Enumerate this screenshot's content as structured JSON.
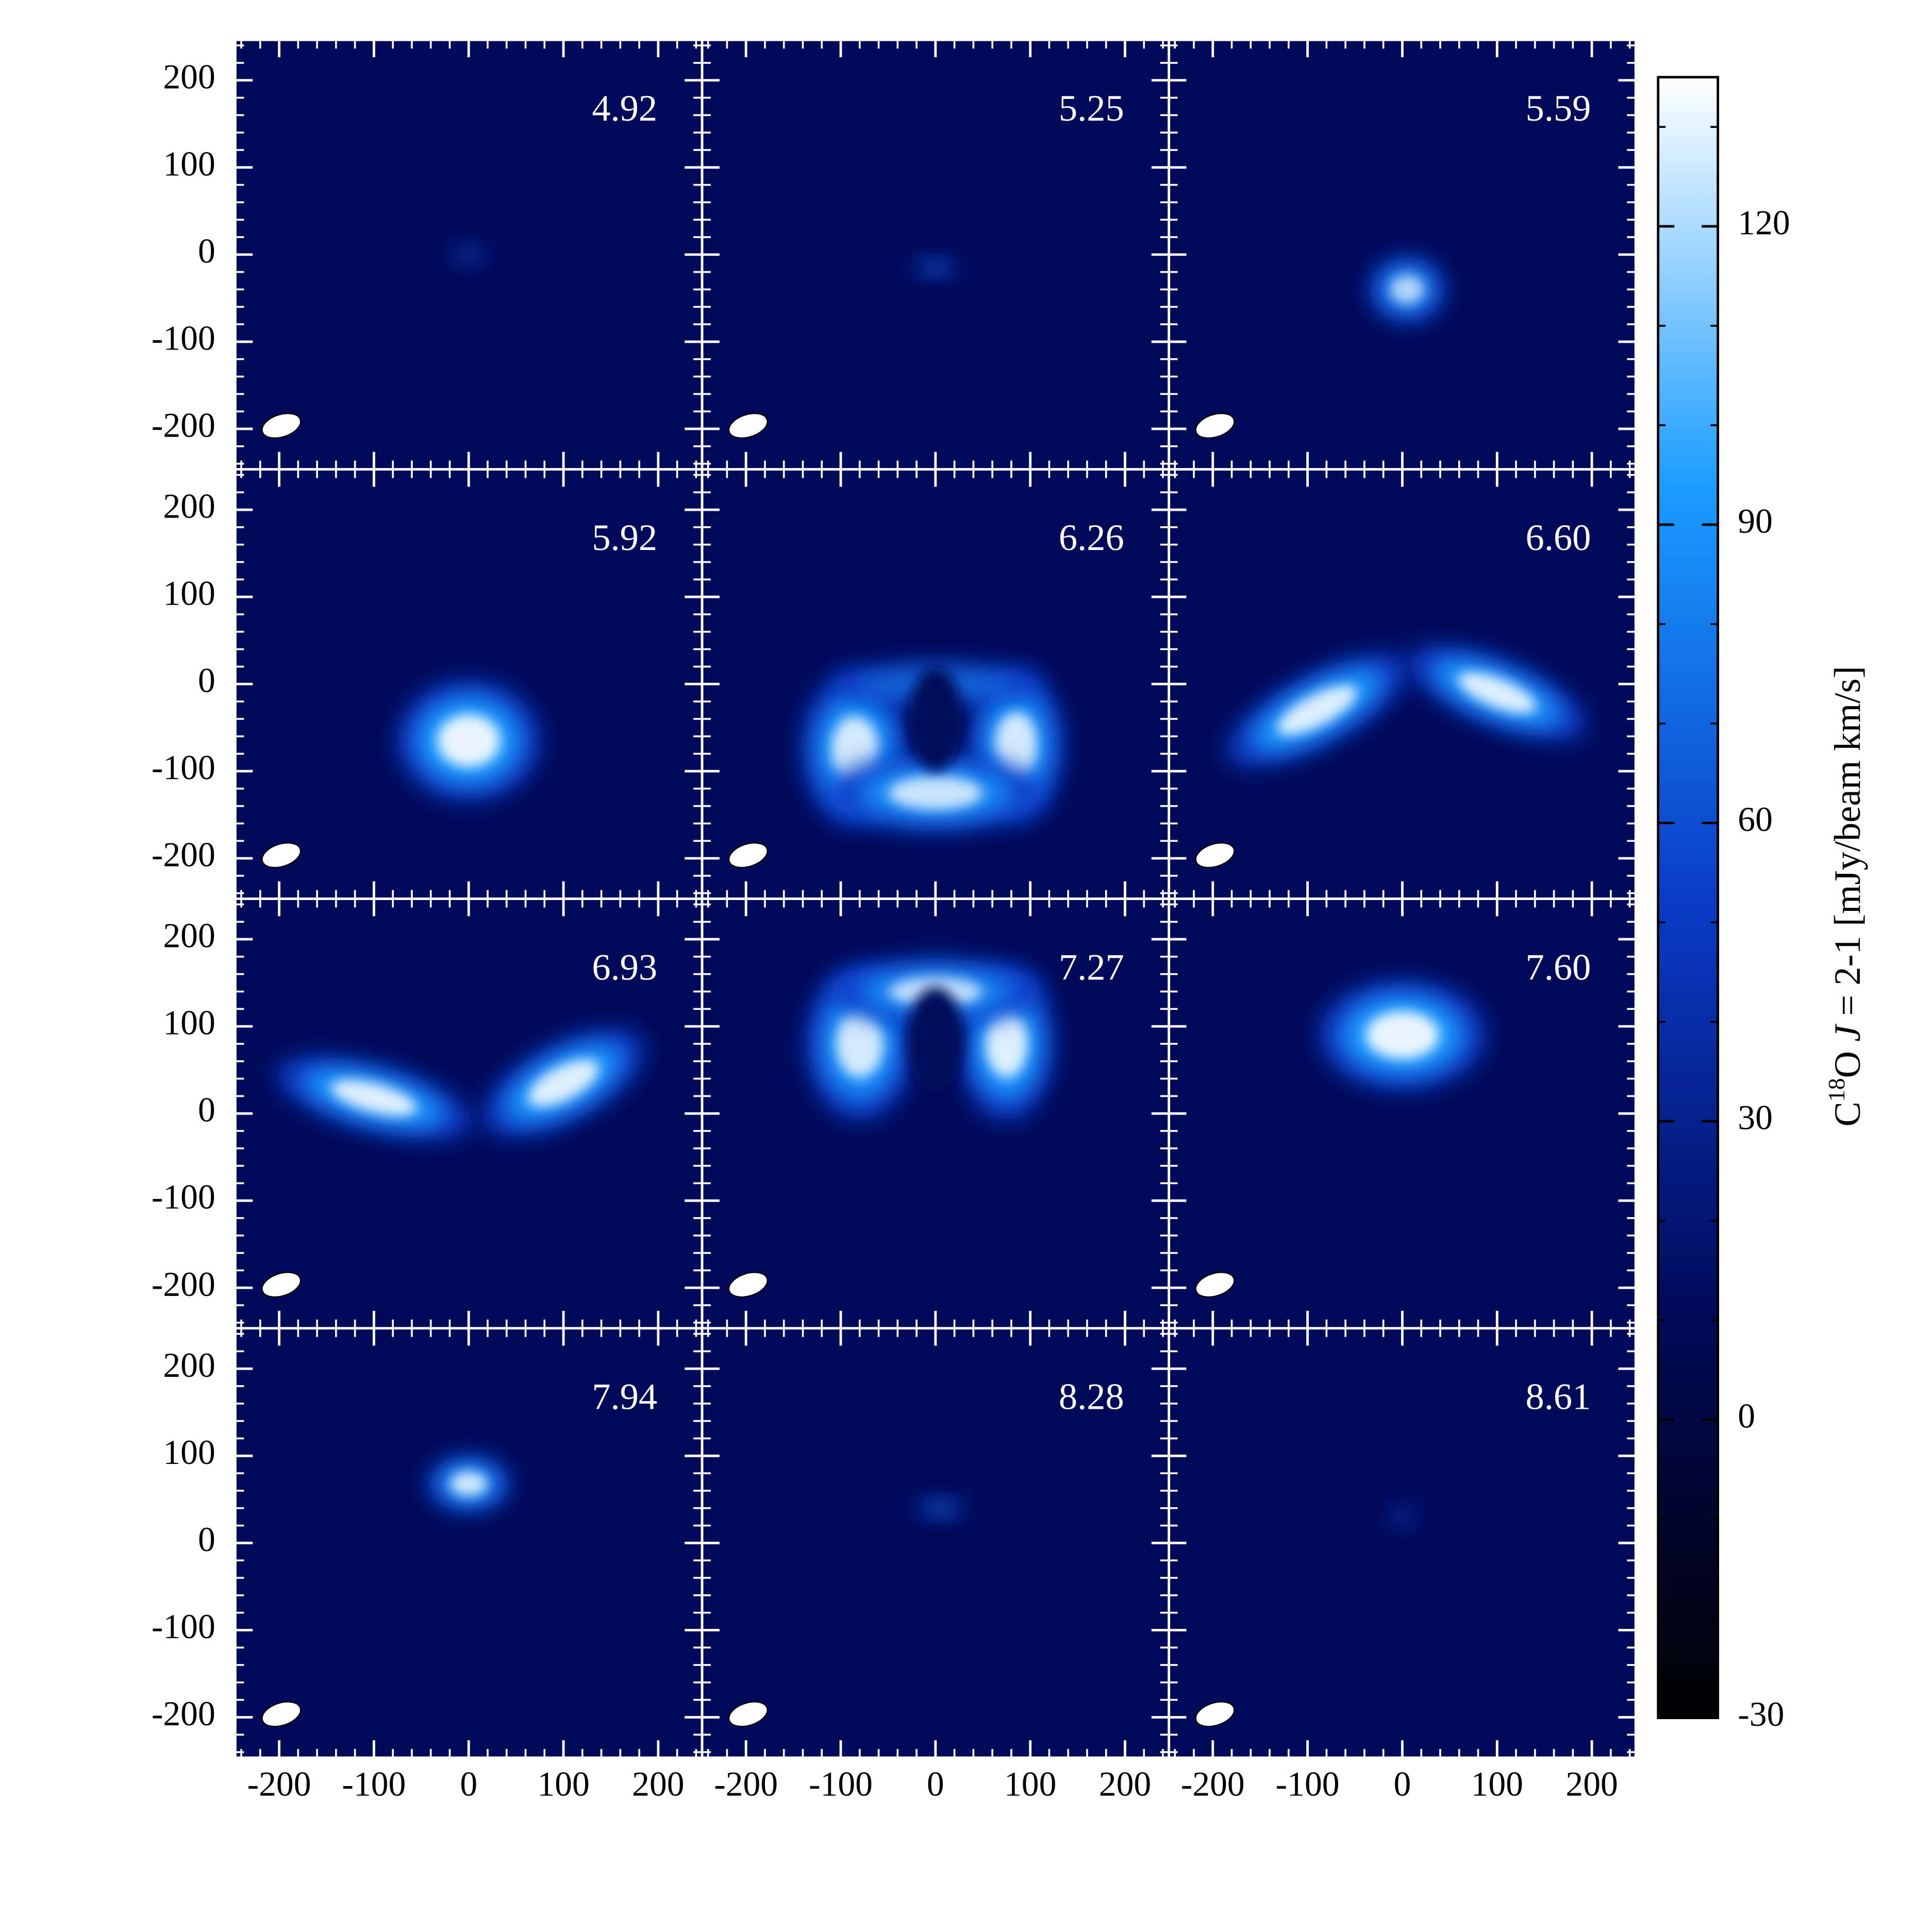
{
  "chart_data": {
    "type": "channel-map",
    "channels": [
      "4.92",
      "5.25",
      "5.59",
      "5.92",
      "6.26",
      "6.60",
      "6.93",
      "7.27",
      "7.60",
      "7.94",
      "8.28",
      "8.61"
    ],
    "xlim": [
      -245,
      245
    ],
    "ylim": [
      -245,
      245
    ],
    "xticks": [
      -200,
      -100,
      0,
      100,
      200
    ],
    "yticks": [
      -200,
      -100,
      0,
      100,
      200
    ],
    "minor_tick_step": 20,
    "colormap": [
      "#000000",
      "#000a5a",
      "#0a3cc8",
      "#1a9cff",
      "#ffffff"
    ],
    "colorbar": {
      "label_parts": [
        "C",
        "18",
        "O ",
        "J",
        " = 2-1 [mJy/beam km/s]"
      ],
      "lim": [
        -30,
        135
      ],
      "ticks": [
        -30,
        0,
        30,
        60,
        90,
        120
      ],
      "minor_tick_step": 10
    }
  }
}
